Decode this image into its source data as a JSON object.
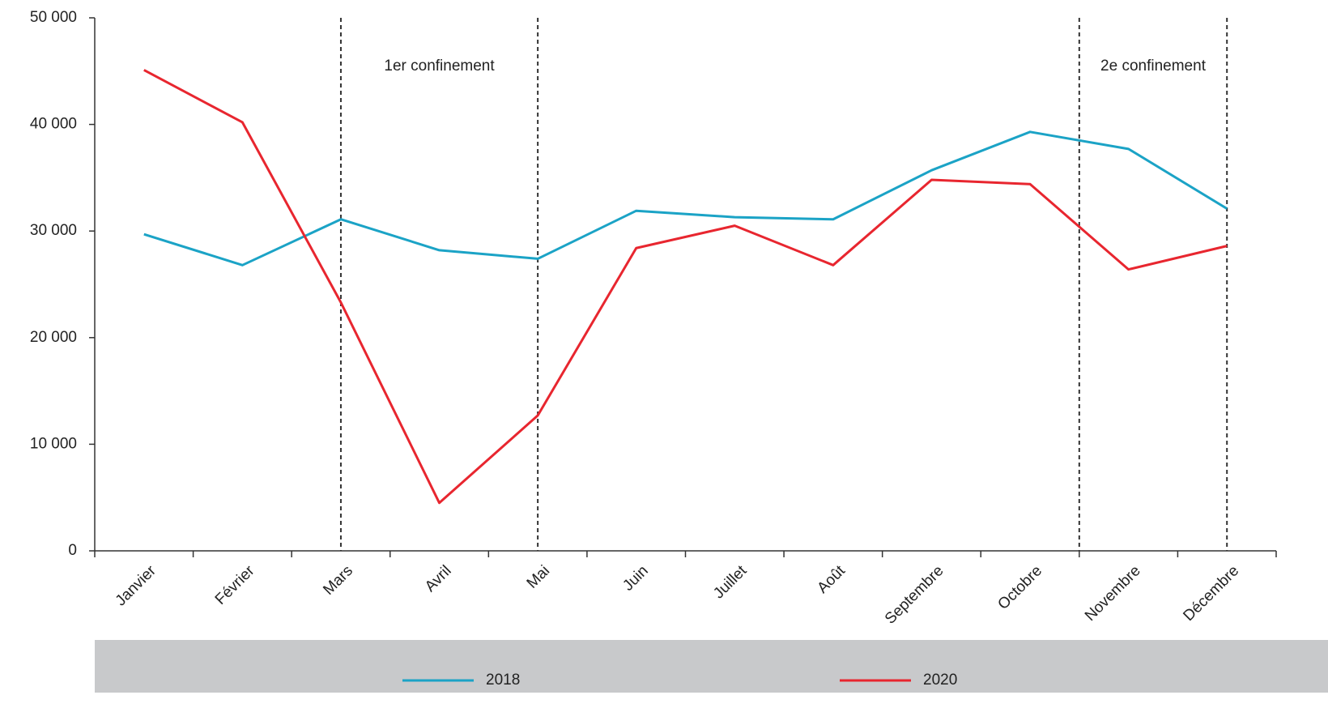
{
  "chart_data": {
    "type": "line",
    "categories": [
      "Janvier",
      "Février",
      "Mars",
      "Avril",
      "Mai",
      "Juin",
      "Juillet",
      "Août",
      "Septembre",
      "Octobre",
      "Novembre",
      "Décembre"
    ],
    "series": [
      {
        "name": "2018",
        "color": "#1ba3c6",
        "values": [
          29700,
          26800,
          31100,
          28200,
          27400,
          31900,
          31300,
          31100,
          35700,
          39300,
          37700,
          32100
        ]
      },
      {
        "name": "2020",
        "color": "#e8262f",
        "values": [
          45100,
          40200,
          23300,
          4500,
          12700,
          28400,
          30500,
          26800,
          34800,
          34400,
          26400,
          28600
        ]
      }
    ],
    "ylim": [
      0,
      50000
    ],
    "yticks": [
      0,
      {
        "value": 10000,
        "label": "10 000"
      },
      {
        "value": 20000,
        "label": "20 000"
      },
      {
        "value": 30000,
        "label": "30 000"
      },
      {
        "value": 40000,
        "label": "40 000"
      },
      {
        "value": 50000,
        "label": "50 000"
      }
    ],
    "annotations": [
      {
        "text": "1er confinement",
        "from": 2,
        "to": 4
      },
      {
        "text": "2e confinement",
        "from": 9.5,
        "to": 11
      }
    ],
    "legend": "bottom"
  }
}
